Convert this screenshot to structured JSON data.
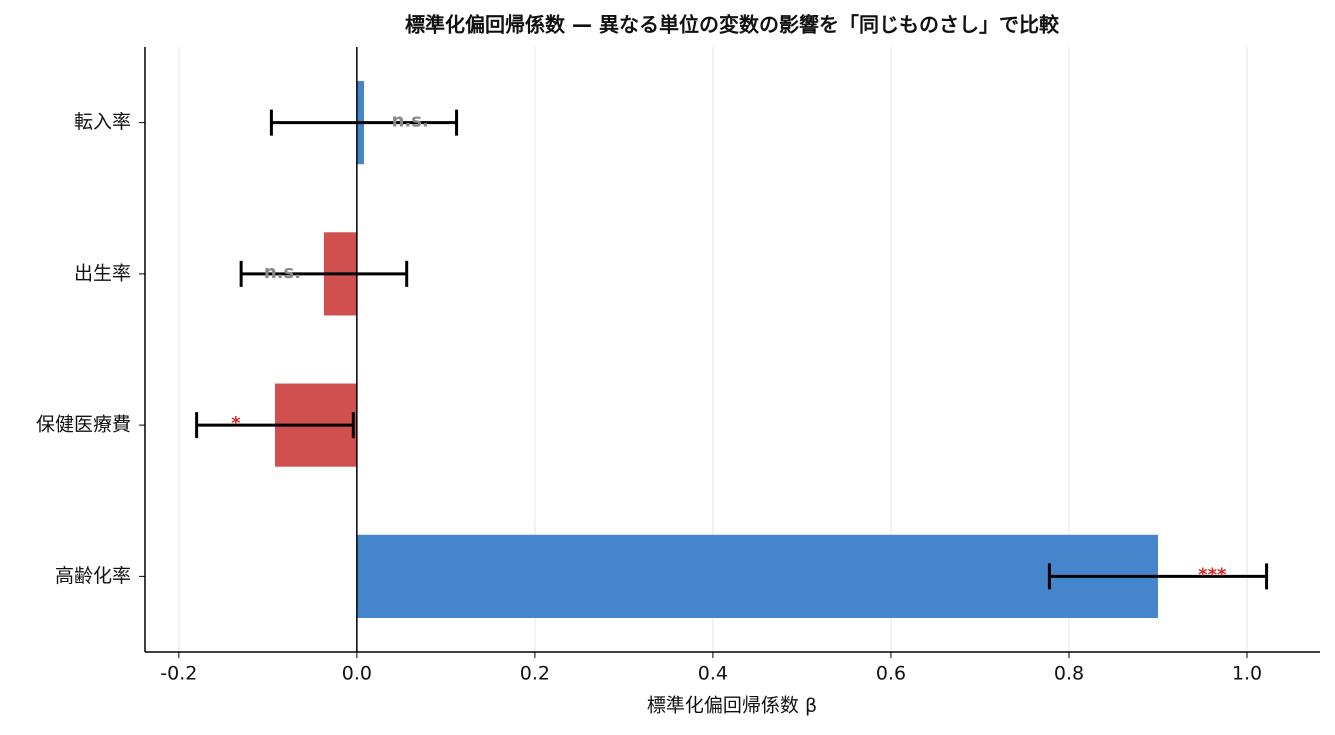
{
  "chart_data": {
    "type": "hbar_errorbar",
    "title": "標準化偏回帰係数 — 異なる単位の変数の影響を「同じものさし」で比較",
    "x_label": "標準化偏回帰係数 β",
    "categories": [
      "転入率",
      "出生率",
      "保健医療費",
      "高齢化率"
    ],
    "values": [
      0.008,
      -0.037,
      -0.092,
      0.9
    ],
    "errors": [
      0.104,
      0.093,
      0.088,
      0.122
    ],
    "colors": [
      "#4585cc",
      "#d05050",
      "#d05050",
      "#4585cc"
    ],
    "significance": [
      "n.s.",
      "n.s.",
      "*",
      "***"
    ],
    "significance_colors": [
      "#888888",
      "#888888",
      "#d62728",
      "#d62728"
    ],
    "xlim": [
      -0.238,
      1.082
    ],
    "xticks": [
      -0.2,
      {
        "value": 0,
        "label": "0.0"
      },
      0.2,
      0.4,
      0.6,
      0.8,
      {
        "value": 1,
        "label": "1.0"
      }
    ],
    "grid": true
  }
}
